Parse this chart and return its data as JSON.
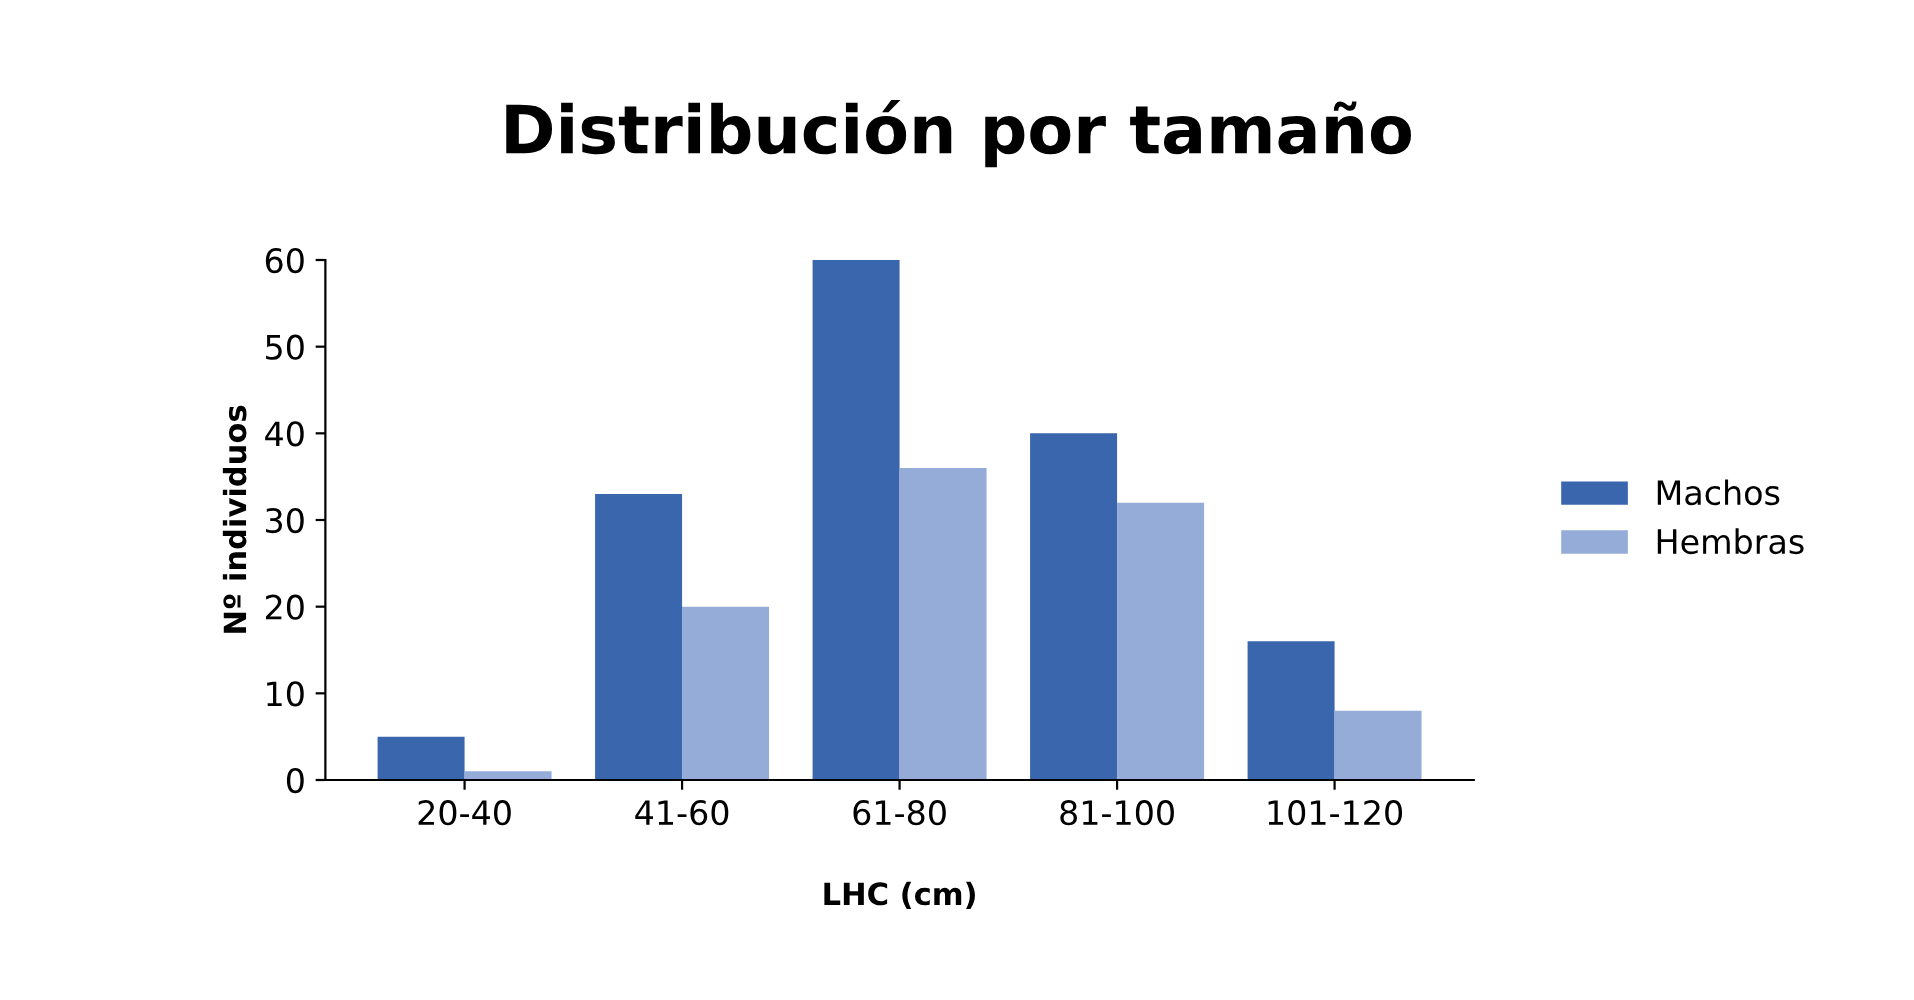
{
  "chart_data": {
    "type": "bar",
    "title": "Distribución por tamaño",
    "xlabel": "LHC (cm)",
    "ylabel": "Nº individuos",
    "categories": [
      "20-40",
      "41-60",
      "61-80",
      "81-100",
      "101-120"
    ],
    "series": [
      {
        "name": "Machos",
        "color": "#3a66ad",
        "values": [
          5,
          33,
          60,
          40,
          16
        ]
      },
      {
        "name": "Hembras",
        "color": "#95acd8",
        "values": [
          1,
          20,
          36,
          32,
          8
        ]
      }
    ],
    "ylim": [
      0,
      60
    ],
    "yticks": [
      0,
      10,
      20,
      30,
      40,
      50,
      60
    ],
    "grid": false,
    "legend": "right"
  }
}
